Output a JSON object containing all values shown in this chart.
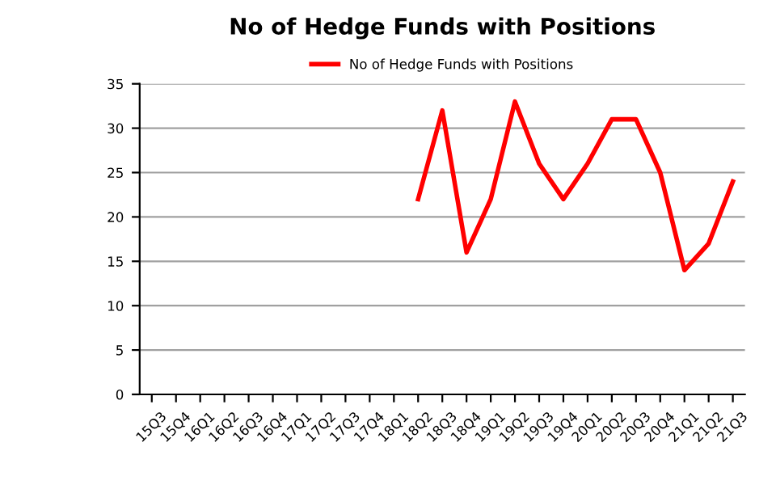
{
  "chart_data": {
    "type": "line",
    "title": "No of Hedge Funds with Positions",
    "categories": [
      "15Q3",
      "15Q4",
      "16Q1",
      "16Q2",
      "16Q3",
      "16Q4",
      "17Q1",
      "17Q2",
      "17Q3",
      "17Q4",
      "18Q1",
      "18Q2",
      "18Q3",
      "18Q4",
      "19Q1",
      "19Q2",
      "19Q3",
      "19Q4",
      "20Q1",
      "20Q2",
      "20Q3",
      "20Q4",
      "21Q1",
      "21Q2",
      "21Q3"
    ],
    "series": [
      {
        "name": "No of Hedge Funds with Positions",
        "color": "#ff0000",
        "values": [
          null,
          null,
          null,
          null,
          null,
          null,
          null,
          null,
          null,
          null,
          null,
          22,
          32,
          16,
          22,
          33,
          26,
          22,
          26,
          31,
          31,
          25,
          14,
          17,
          24
        ]
      }
    ],
    "ylim": [
      0,
      35
    ],
    "yticks": [
      0,
      5,
      10,
      15,
      20,
      25,
      30,
      35
    ],
    "grid": "y",
    "legend": "top",
    "marker": "none",
    "line_style": "solid"
  }
}
